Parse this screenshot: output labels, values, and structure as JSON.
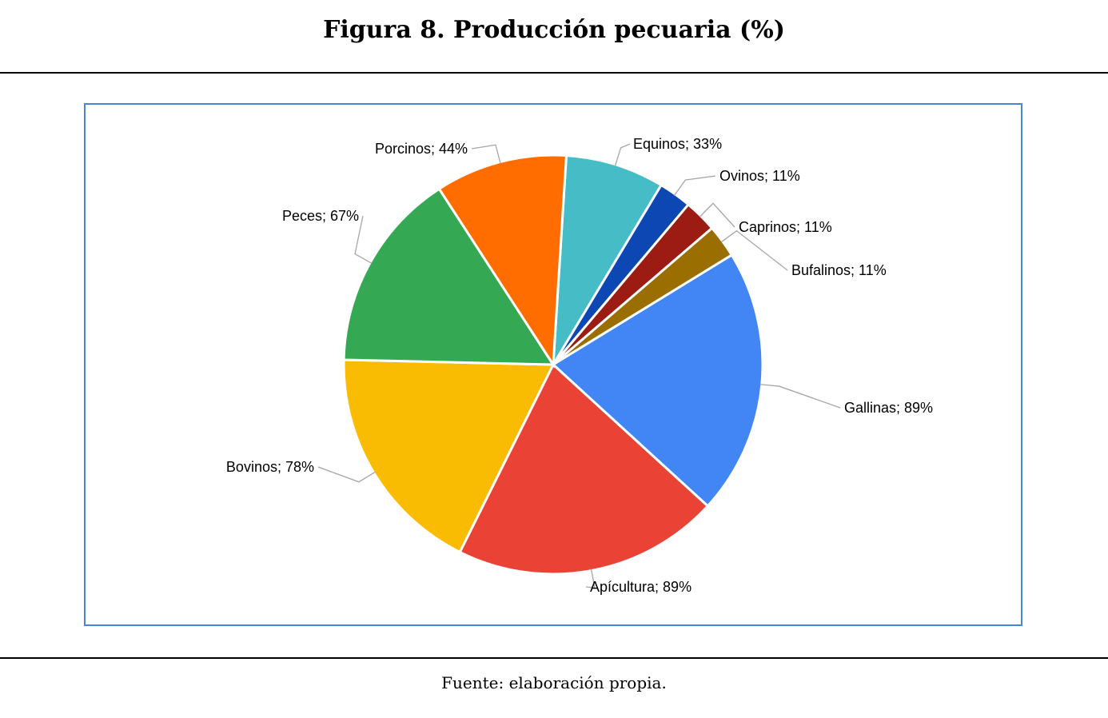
{
  "figure": {
    "title": "Figura 8. Producción pecuaria (%)",
    "source": "Fuente: elaboración propia."
  },
  "chart_data": {
    "type": "pie",
    "title": "",
    "start_angle_deg": 3.6,
    "slices": [
      {
        "label": "Equinos",
        "value": 33,
        "display": "Equinos; 33%",
        "color": "#46bdc6"
      },
      {
        "label": "Ovinos",
        "value": 11,
        "display": "Ovinos; 11%",
        "color": "#0d47b3"
      },
      {
        "label": "Caprinos",
        "value": 11,
        "display": "Caprinos; 11%",
        "color": "#9c1b12"
      },
      {
        "label": "Bufalinos",
        "value": 11,
        "display": "Bufalinos; 11%",
        "color": "#9a6e00"
      },
      {
        "label": "Gallinas",
        "value": 89,
        "display": "Gallinas; 89%",
        "color": "#4285f4"
      },
      {
        "label": "Apícultura",
        "value": 89,
        "display": "Apícultura; 89%",
        "color": "#ea4335"
      },
      {
        "label": "Bovinos",
        "value": 78,
        "display": "Bovinos; 78%",
        "color": "#f9bc02"
      },
      {
        "label": "Peces",
        "value": 67,
        "display": "Peces; 67%",
        "color": "#34a853"
      },
      {
        "label": "Porcinos",
        "value": 44,
        "display": "Porcinos; 44%",
        "color": "#ff6d01"
      }
    ],
    "legend": "none",
    "data_labels": "outside-with-leader-lines"
  }
}
